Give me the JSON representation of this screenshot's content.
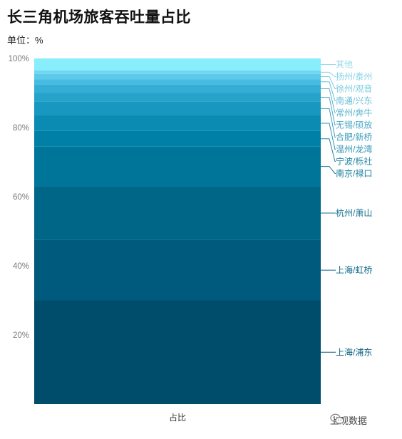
{
  "title": "长三角机场旅客吞吐量占比",
  "unit_label": "单位：%",
  "watermark": {
    "text": "上观数据",
    "icon": "chat-bubbles-icon"
  },
  "chart_data": {
    "type": "bar",
    "stacked": true,
    "title": "长三角机场旅客吞吐量占比",
    "categories": [
      "占比"
    ],
    "ylim": [
      0,
      100
    ],
    "yticks": [
      "20%",
      "40%",
      "60%",
      "80%",
      "100%"
    ],
    "ytick_values": [
      20,
      40,
      60,
      80,
      100
    ],
    "grid": false,
    "series": [
      {
        "name": "上海/浦东",
        "value": 30,
        "color": "#004c6b",
        "label_color": "#0b5f7d"
      },
      {
        "name": "上海/虹桥",
        "value": 17.5,
        "color": "#005a7d",
        "label_color": "#0d6786"
      },
      {
        "name": "杭州/萧山",
        "value": 15.5,
        "color": "#006688",
        "label_color": "#106f8e"
      },
      {
        "name": "南京/禄口",
        "value": 11.5,
        "color": "#00759a",
        "label_color": "#167c9b"
      },
      {
        "name": "宁波/栎社",
        "value": 4.5,
        "color": "#0080a6",
        "label_color": "#2286a5"
      },
      {
        "name": "温州/龙湾",
        "value": 4.5,
        "color": "#0a8cb2",
        "label_color": "#2c92b0"
      },
      {
        "name": "合肥/新桥",
        "value": 4.0,
        "color": "#1898c0",
        "label_color": "#3a9dbb"
      },
      {
        "name": "无锡/硕放",
        "value": 2.5,
        "color": "#26a3cb",
        "label_color": "#4ba9c6"
      },
      {
        "name": "常州/奔牛",
        "value": 2.5,
        "color": "#35aed5",
        "label_color": "#5bb4cf"
      },
      {
        "name": "南通/兴东",
        "value": 1.5,
        "color": "#48bce0",
        "label_color": "#6dc0d8"
      },
      {
        "name": "徐州/观音",
        "value": 1.5,
        "color": "#5ccae9",
        "label_color": "#7ccbe0"
      },
      {
        "name": "扬州/泰州",
        "value": 1.0,
        "color": "#70d7f0",
        "label_color": "#8bd4e6"
      },
      {
        "name": "其他",
        "value": 3.5,
        "color": "#88eefc",
        "label_color": "#9adbeb"
      }
    ]
  }
}
